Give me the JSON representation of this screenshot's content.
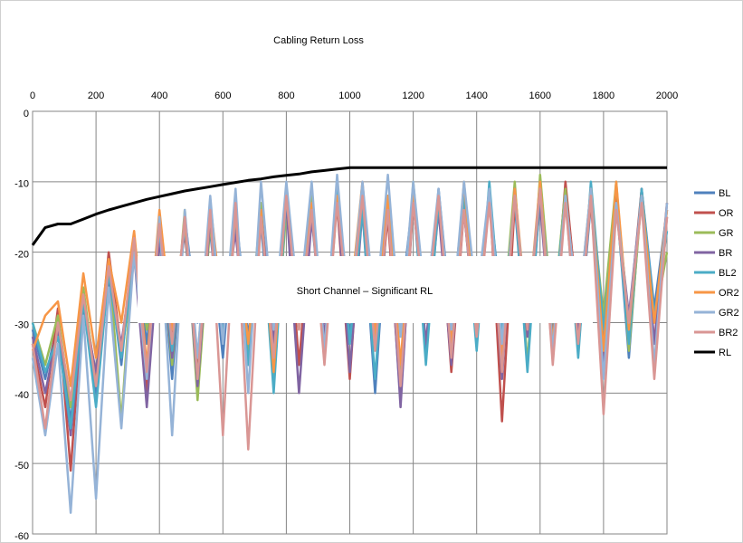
{
  "chart_data": {
    "type": "line",
    "title": "Cabling Return Loss",
    "annotation": "Short Channel – Significant RL",
    "x": [
      0,
      40,
      80,
      120,
      160,
      200,
      240,
      280,
      320,
      360,
      400,
      440,
      480,
      520,
      560,
      600,
      640,
      680,
      720,
      760,
      800,
      840,
      880,
      920,
      960,
      1000,
      1040,
      1080,
      1120,
      1160,
      1200,
      1240,
      1280,
      1320,
      1360,
      1400,
      1440,
      1480,
      1520,
      1560,
      1600,
      1640,
      1680,
      1720,
      1760,
      1800,
      1840,
      1880,
      1920,
      1960,
      2000
    ],
    "xlim": [
      0,
      2000
    ],
    "xticks": [
      0,
      200,
      400,
      600,
      800,
      1000,
      1200,
      1400,
      1600,
      1800,
      2000
    ],
    "ylim": [
      -60,
      0
    ],
    "yticks": [
      0,
      -10,
      -20,
      -30,
      -40,
      -50,
      -60
    ],
    "grid": true,
    "legend": "right",
    "series": [
      {
        "name": "BL",
        "color": "#4f81bd",
        "values": [
          -31,
          -38,
          -30,
          -44,
          -27,
          -40,
          -22,
          -36,
          -18,
          -33,
          -16,
          -38,
          -15,
          -30,
          -17,
          -35,
          -14,
          -32,
          -16,
          -37,
          -13,
          -29,
          -15,
          -34,
          -12,
          -31,
          -14,
          -40,
          -13,
          -28,
          -12,
          -35,
          -11,
          -30,
          -14,
          -33,
          -12,
          -29,
          -13,
          -36,
          -12,
          -31,
          -11,
          -34,
          -13,
          -30,
          -12,
          -35,
          -11,
          -28,
          -14
        ]
      },
      {
        "name": "OR",
        "color": "#c0504d",
        "values": [
          -33,
          -42,
          -28,
          -51,
          -26,
          -38,
          -20,
          -34,
          -19,
          -40,
          -15,
          -32,
          -17,
          -37,
          -14,
          -29,
          -16,
          -35,
          -15,
          -31,
          -12,
          -36,
          -14,
          -30,
          -13,
          -38,
          -12,
          -33,
          -15,
          -41,
          -13,
          -30,
          -12,
          -37,
          -14,
          -32,
          -11,
          -44,
          -13,
          -31,
          -12,
          -34,
          -10,
          -29,
          -13,
          -36,
          -12,
          -30,
          -11,
          -33,
          -13
        ]
      },
      {
        "name": "GR",
        "color": "#9bbb59",
        "values": [
          -30,
          -36,
          -29,
          -42,
          -25,
          -39,
          -21,
          -44,
          -18,
          -31,
          -17,
          -36,
          -14,
          -41,
          -16,
          -30,
          -15,
          -34,
          -13,
          -38,
          -14,
          -31,
          -12,
          -35,
          -13,
          -29,
          -11,
          -33,
          -12,
          -37,
          -10,
          -30,
          -13,
          -34,
          -11,
          -28,
          -12,
          -32,
          -10,
          -36,
          -9,
          -30,
          -11,
          -33,
          -12,
          -29,
          -10,
          -34,
          -12,
          -30,
          -20
        ]
      },
      {
        "name": "BR",
        "color": "#8064a2",
        "values": [
          -32,
          -40,
          -31,
          -46,
          -28,
          -37,
          -24,
          -33,
          -20,
          -42,
          -18,
          -35,
          -16,
          -39,
          -15,
          -31,
          -17,
          -36,
          -14,
          -33,
          -13,
          -40,
          -15,
          -32,
          -12,
          -37,
          -14,
          -30,
          -13,
          -42,
          -12,
          -33,
          -14,
          -36,
          -13,
          -30,
          -12,
          -38,
          -11,
          -32,
          -13,
          -35,
          -12,
          -31,
          -11,
          -37,
          -13,
          -29,
          -12,
          -33,
          -15
        ]
      },
      {
        "name": "BL2",
        "color": "#4bacc6",
        "values": [
          -30,
          -37,
          -32,
          -45,
          -27,
          -42,
          -23,
          -35,
          -21,
          -30,
          -17,
          -34,
          -16,
          -38,
          -13,
          -32,
          -15,
          -36,
          -14,
          -40,
          -12,
          -30,
          -13,
          -35,
          -11,
          -33,
          -14,
          -38,
          -12,
          -31,
          -11,
          -36,
          -13,
          -29,
          -12,
          -34,
          -10,
          -32,
          -12,
          -37,
          -11,
          -30,
          -12,
          -35,
          -10,
          -31,
          -13,
          -33,
          -11,
          -29,
          -17
        ]
      },
      {
        "name": "OR2",
        "color": "#f79646",
        "values": [
          -34,
          -29,
          -27,
          -39,
          -23,
          -35,
          -21,
          -30,
          -17,
          -36,
          -14,
          -31,
          -16,
          -35,
          -13,
          -29,
          -15,
          -33,
          -14,
          -37,
          -11,
          -30,
          -13,
          -34,
          -12,
          -28,
          -10,
          -32,
          -12,
          -36,
          -11,
          -29,
          -12,
          -33,
          -10,
          -31,
          -12,
          -35,
          -11,
          -30,
          -10,
          -33,
          -12,
          -29,
          -11,
          -34,
          -10,
          -31,
          -12,
          -30,
          -14
        ]
      },
      {
        "name": "GR2",
        "color": "#95b3d7",
        "values": [
          -35,
          -46,
          -33,
          -57,
          -29,
          -55,
          -25,
          -45,
          -20,
          -38,
          -15,
          -46,
          -14,
          -35,
          -12,
          -33,
          -11,
          -40,
          -10,
          -31,
          -10,
          -28,
          -10,
          -34,
          -9,
          -30,
          -10,
          -29,
          -9,
          -32,
          -10,
          -28,
          -11,
          -31,
          -10,
          -27,
          -11,
          -33,
          -12,
          -30,
          -11,
          -34,
          -12,
          -29,
          -11,
          -38,
          -13,
          -30,
          -12,
          -36,
          -13
        ]
      },
      {
        "name": "BR2",
        "color": "#d99694",
        "values": [
          -33,
          -45,
          -30,
          -41,
          -26,
          -39,
          -22,
          -34,
          -18,
          -37,
          -16,
          -33,
          -15,
          -38,
          -14,
          -46,
          -13,
          -48,
          -15,
          -35,
          -12,
          -31,
          -14,
          -36,
          -13,
          -30,
          -12,
          -34,
          -14,
          -39,
          -13,
          -30,
          -12,
          -35,
          -14,
          -32,
          -13,
          -37,
          -12,
          -31,
          -11,
          -36,
          -13,
          -33,
          -12,
          -43,
          -14,
          -30,
          -13,
          -38,
          -15
        ]
      },
      {
        "name": "RL",
        "color": "#000000",
        "values": [
          -19,
          -16.5,
          -16,
          -16,
          -15.3,
          -14.6,
          -14,
          -13.5,
          -13,
          -12.5,
          -12.1,
          -11.7,
          -11.3,
          -11,
          -10.7,
          -10.4,
          -10.1,
          -9.8,
          -9.6,
          -9.3,
          -9.1,
          -8.9,
          -8.6,
          -8.4,
          -8.2,
          -8,
          -8,
          -8,
          -8,
          -8,
          -8,
          -8,
          -8,
          -8,
          -8,
          -8,
          -8,
          -8,
          -8,
          -8,
          -8,
          -8,
          -8,
          -8,
          -8,
          -8,
          -8,
          -8,
          -8,
          -8,
          -8
        ]
      }
    ]
  }
}
